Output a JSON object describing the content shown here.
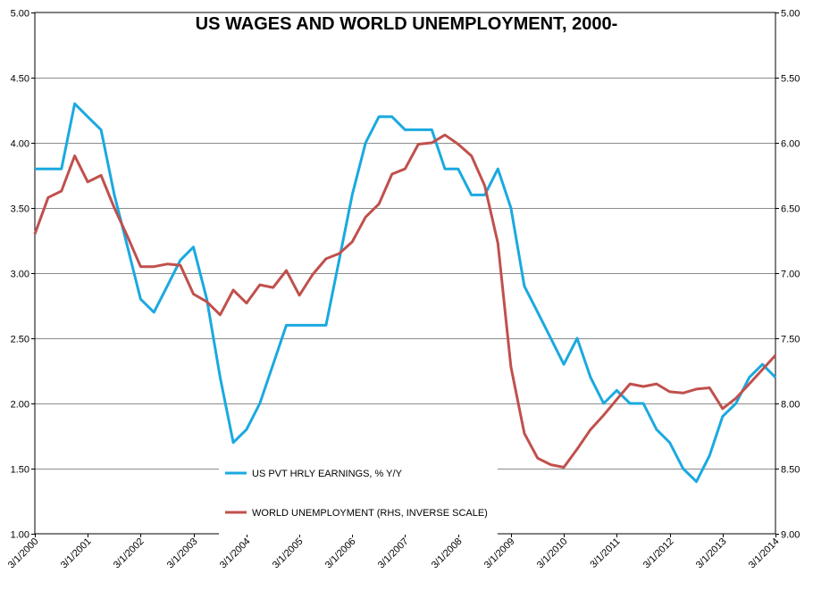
{
  "chart_data": {
    "type": "line",
    "title": "US WAGES AND WORLD UNEMPLOYMENT, 2000-",
    "y_left": {
      "ylim": [
        1.0,
        5.0
      ],
      "ticks": [
        "1.00",
        "1.50",
        "2.00",
        "2.50",
        "3.00",
        "3.50",
        "4.00",
        "4.50",
        "5.00"
      ]
    },
    "y_right": {
      "scale": "inverse",
      "ylim": [
        9.0,
        5.0
      ],
      "ticks": [
        "9.00",
        "8.50",
        "8.00",
        "7.50",
        "7.00",
        "6.50",
        "6.00",
        "5.50",
        "5.00"
      ]
    },
    "x_tick_labels": [
      "3/1/2000",
      "3/1/2001",
      "3/1/2002",
      "3/1/2003",
      "3/1/2004",
      "3/1/2005",
      "3/1/2006",
      "3/1/2007",
      "3/1/2008",
      "3/1/2009",
      "3/1/2010",
      "3/1/2011",
      "3/1/2012",
      "3/1/2013",
      "3/1/2014"
    ],
    "xlim": [
      "2000-03-01",
      "2014-03-01"
    ],
    "grid": "horizontal",
    "series": [
      {
        "name": "US PVT HRLY EARNINGS, % Y/Y",
        "axis": "left",
        "color": "#1aa9e0",
        "points": [
          [
            "2000-03-01",
            3.8
          ],
          [
            "2000-06-01",
            3.8
          ],
          [
            "2000-09-01",
            3.8
          ],
          [
            "2000-12-01",
            4.3
          ],
          [
            "2001-03-01",
            4.2
          ],
          [
            "2001-06-01",
            4.1
          ],
          [
            "2001-09-01",
            3.6
          ],
          [
            "2001-12-01",
            3.2
          ],
          [
            "2002-03-01",
            2.8
          ],
          [
            "2002-06-01",
            2.7
          ],
          [
            "2002-09-01",
            2.9
          ],
          [
            "2002-12-01",
            3.1
          ],
          [
            "2003-03-01",
            3.2
          ],
          [
            "2003-06-01",
            2.8
          ],
          [
            "2003-09-01",
            2.2
          ],
          [
            "2003-12-01",
            1.7
          ],
          [
            "2004-03-01",
            1.8
          ],
          [
            "2004-06-01",
            2.0
          ],
          [
            "2004-09-01",
            2.3
          ],
          [
            "2004-12-01",
            2.6
          ],
          [
            "2005-03-01",
            2.6
          ],
          [
            "2005-06-01",
            2.6
          ],
          [
            "2005-09-01",
            2.6
          ],
          [
            "2005-12-01",
            3.1
          ],
          [
            "2006-03-01",
            3.6
          ],
          [
            "2006-06-01",
            4.0
          ],
          [
            "2006-09-01",
            4.2
          ],
          [
            "2006-12-01",
            4.2
          ],
          [
            "2007-03-01",
            4.1
          ],
          [
            "2007-06-01",
            4.1
          ],
          [
            "2007-09-01",
            4.1
          ],
          [
            "2007-12-01",
            3.8
          ],
          [
            "2008-03-01",
            3.8
          ],
          [
            "2008-06-01",
            3.6
          ],
          [
            "2008-09-01",
            3.6
          ],
          [
            "2008-12-01",
            3.8
          ],
          [
            "2009-03-01",
            3.5
          ],
          [
            "2009-06-01",
            2.9
          ],
          [
            "2009-09-01",
            2.7
          ],
          [
            "2009-12-01",
            2.5
          ],
          [
            "2010-03-01",
            2.3
          ],
          [
            "2010-06-01",
            2.5
          ],
          [
            "2010-09-01",
            2.2
          ],
          [
            "2010-12-01",
            2.0
          ],
          [
            "2011-03-01",
            2.1
          ],
          [
            "2011-06-01",
            2.0
          ],
          [
            "2011-09-01",
            2.0
          ],
          [
            "2011-12-01",
            1.8
          ],
          [
            "2012-03-01",
            1.7
          ],
          [
            "2012-06-01",
            1.5
          ],
          [
            "2012-09-01",
            1.4
          ],
          [
            "2012-12-01",
            1.6
          ],
          [
            "2013-03-01",
            1.9
          ],
          [
            "2013-06-01",
            2.0
          ],
          [
            "2013-09-01",
            2.2
          ],
          [
            "2013-12-01",
            2.3
          ],
          [
            "2014-03-01",
            2.2
          ]
        ]
      },
      {
        "name": "WORLD UNEMPLOYMENT (RHS, INVERSE SCALE)",
        "axis": "right",
        "color": "#c0504d",
        "points": [
          [
            "2000-03-01",
            6.7
          ],
          [
            "2000-06-01",
            6.42
          ],
          [
            "2000-09-01",
            6.37
          ],
          [
            "2000-12-01",
            6.1
          ],
          [
            "2001-03-01",
            6.3
          ],
          [
            "2001-06-01",
            6.25
          ],
          [
            "2001-09-01",
            6.5
          ],
          [
            "2001-12-01",
            6.72
          ],
          [
            "2002-03-01",
            6.95
          ],
          [
            "2002-06-01",
            6.95
          ],
          [
            "2002-09-01",
            6.93
          ],
          [
            "2002-12-01",
            6.94
          ],
          [
            "2003-03-01",
            7.16
          ],
          [
            "2003-06-01",
            7.22
          ],
          [
            "2003-09-01",
            7.32
          ],
          [
            "2003-12-01",
            7.13
          ],
          [
            "2004-03-01",
            7.23
          ],
          [
            "2004-06-01",
            7.09
          ],
          [
            "2004-09-01",
            7.11
          ],
          [
            "2004-12-01",
            6.98
          ],
          [
            "2005-03-01",
            7.17
          ],
          [
            "2005-06-01",
            7.01
          ],
          [
            "2005-09-01",
            6.89
          ],
          [
            "2005-12-01",
            6.85
          ],
          [
            "2006-03-01",
            6.76
          ],
          [
            "2006-06-01",
            6.57
          ],
          [
            "2006-09-01",
            6.47
          ],
          [
            "2006-12-01",
            6.24
          ],
          [
            "2007-03-01",
            6.2
          ],
          [
            "2007-06-01",
            6.01
          ],
          [
            "2007-09-01",
            6.0
          ],
          [
            "2007-12-01",
            5.94
          ],
          [
            "2008-03-01",
            6.01
          ],
          [
            "2008-06-01",
            6.1
          ],
          [
            "2008-09-01",
            6.33
          ],
          [
            "2008-12-01",
            6.77
          ],
          [
            "2009-03-01",
            7.72
          ],
          [
            "2009-06-01",
            8.23
          ],
          [
            "2009-09-01",
            8.42
          ],
          [
            "2009-12-01",
            8.47
          ],
          [
            "2010-03-01",
            8.49
          ],
          [
            "2010-06-01",
            8.35
          ],
          [
            "2010-09-01",
            8.2
          ],
          [
            "2010-12-01",
            8.09
          ],
          [
            "2011-03-01",
            7.97
          ],
          [
            "2011-06-01",
            7.85
          ],
          [
            "2011-09-01",
            7.87
          ],
          [
            "2011-12-01",
            7.85
          ],
          [
            "2012-03-01",
            7.91
          ],
          [
            "2012-06-01",
            7.92
          ],
          [
            "2012-09-01",
            7.89
          ],
          [
            "2012-12-01",
            7.88
          ],
          [
            "2013-03-01",
            8.04
          ],
          [
            "2013-06-01",
            7.96
          ],
          [
            "2013-09-01",
            7.85
          ],
          [
            "2013-12-01",
            7.74
          ],
          [
            "2014-03-01",
            7.63
          ]
        ]
      }
    ],
    "legend_placement": "bottom-center, inside plot"
  }
}
